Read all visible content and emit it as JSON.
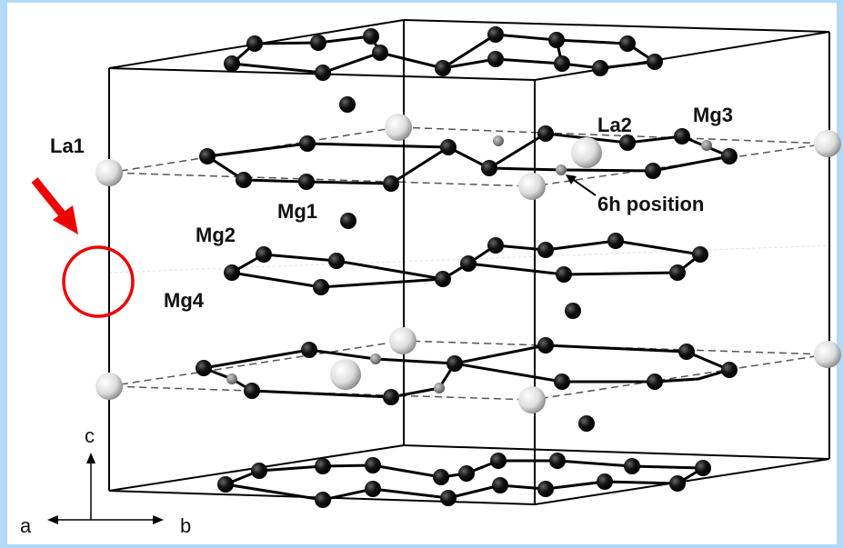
{
  "labels": {
    "la1": "La1",
    "la2": "La2",
    "mg1": "Mg1",
    "mg2": "Mg2",
    "mg3": "Mg3",
    "mg4": "Mg4",
    "site": "6h position"
  },
  "axes": {
    "c": "c",
    "a": "a",
    "b": "b"
  }
}
